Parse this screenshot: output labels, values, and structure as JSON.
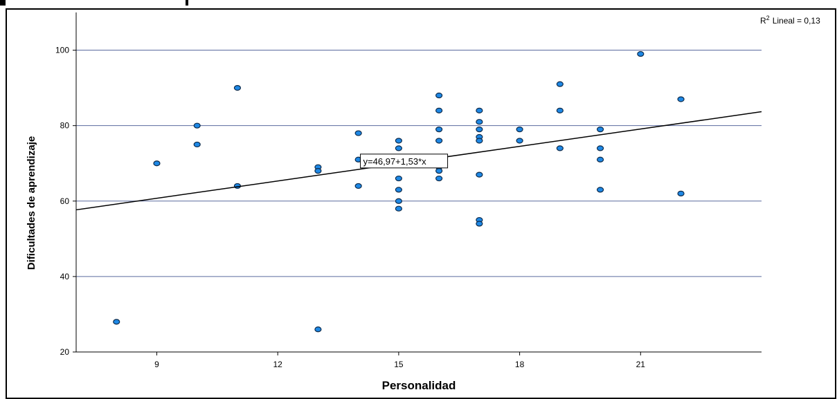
{
  "chart_data": {
    "type": "scatter",
    "title": "",
    "xlabel": "Personalidad",
    "ylabel": "Dificultades de aprendizaje",
    "xlim": [
      7,
      24
    ],
    "ylim": [
      20,
      110
    ],
    "xticks": [
      9,
      12,
      15,
      18,
      21
    ],
    "yticks": [
      20,
      40,
      60,
      80,
      100
    ],
    "grid": "horizontal",
    "points": [
      [
        8,
        28
      ],
      [
        9,
        70
      ],
      [
        10,
        80
      ],
      [
        10,
        75
      ],
      [
        11,
        90
      ],
      [
        11,
        64
      ],
      [
        13,
        69
      ],
      [
        13,
        68
      ],
      [
        13,
        26
      ],
      [
        14,
        78
      ],
      [
        14,
        71
      ],
      [
        14,
        64
      ],
      [
        15,
        76
      ],
      [
        15,
        74
      ],
      [
        15,
        66
      ],
      [
        15,
        63
      ],
      [
        15,
        60
      ],
      [
        15,
        58
      ],
      [
        16,
        88
      ],
      [
        16,
        84
      ],
      [
        16,
        79
      ],
      [
        16,
        76
      ],
      [
        16,
        69
      ],
      [
        16,
        68
      ],
      [
        16,
        66
      ],
      [
        17,
        84
      ],
      [
        17,
        81
      ],
      [
        17,
        79
      ],
      [
        17,
        77
      ],
      [
        17,
        76
      ],
      [
        17,
        67
      ],
      [
        17,
        55
      ],
      [
        17,
        54
      ],
      [
        18,
        79
      ],
      [
        18,
        76
      ],
      [
        19,
        91
      ],
      [
        19,
        84
      ],
      [
        19,
        74
      ],
      [
        20,
        79
      ],
      [
        20,
        74
      ],
      [
        20,
        71
      ],
      [
        20,
        63
      ],
      [
        21,
        99
      ],
      [
        22,
        87
      ],
      [
        22,
        62
      ]
    ],
    "fit": {
      "intercept": 46.97,
      "slope": 1.53,
      "label": "y=46,97+1,53*x",
      "r2_label": "Lineal = 0,13",
      "r2_prefix": "R"
    },
    "colors": {
      "point_fill": "#1e88e5",
      "point_stroke": "#0d2a4a",
      "grid": "#5a6a9e",
      "fit_line": "#000000"
    }
  }
}
